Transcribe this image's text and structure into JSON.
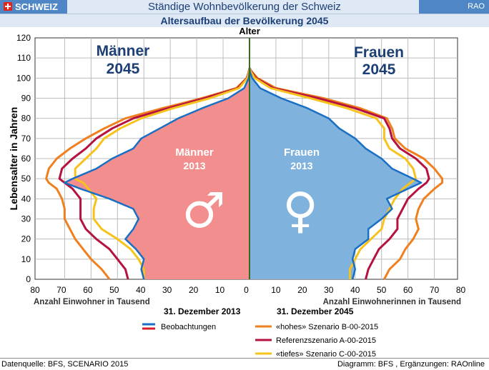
{
  "header": {
    "badge": "SCHWEIZ",
    "title": "Ständige Wohnbevölkerung der Schweiz",
    "right": "RAO"
  },
  "subtitle": "Altersaufbau der Bevölkerung 2045",
  "footer": {
    "left": "Datenquelle: BFS, SCENARIO 2015",
    "right": "Diagramm: BFS , Ergänzungen: RAOnline"
  },
  "colors": {
    "male_fill": "#f28e8e",
    "female_fill": "#7fb2dc",
    "observed": "#1a6fc4",
    "hohes": "#f07f1e",
    "referenz": "#b5123f",
    "tiefes": "#f7c21b",
    "title": "#1c3f75",
    "axis_center": "#3a6b1e"
  },
  "chart_data": {
    "type": "population-pyramid",
    "center_axis_title": "Alter",
    "ylabel": "Lebensalter in Jahren",
    "xlabel_left": "Anzahl Einwohner in Tausend",
    "xlabel_right": "Anzahl Einwohnerinnen in Tausend",
    "ylim": [
      0,
      120
    ],
    "xlim": [
      0,
      80
    ],
    "yticks": [
      "0",
      "10",
      "20",
      "30",
      "40",
      "50",
      "60",
      "70",
      "80",
      "90",
      "100",
      "110",
      "120"
    ],
    "xticks_left": [
      "80",
      "70",
      "60",
      "50",
      "40",
      "30",
      "20",
      "10",
      "0"
    ],
    "xticks_right": [
      "10",
      "20",
      "30",
      "40",
      "50",
      "60",
      "70",
      "80"
    ],
    "ages": [
      0,
      5,
      10,
      15,
      20,
      25,
      30,
      35,
      40,
      45,
      48,
      50,
      55,
      60,
      65,
      70,
      75,
      80,
      85,
      90,
      95,
      100,
      103,
      105
    ],
    "annotations": {
      "male": {
        "label": "Männer",
        "year": "2045"
      },
      "female": {
        "label": "Frauen",
        "year": "2045"
      },
      "male_2013": {
        "label": "Männer",
        "year": "2013"
      },
      "female_2013": {
        "label": "Frauen",
        "year": "2013"
      },
      "male_symbol": "♂",
      "female_symbol": "♀"
    },
    "legend": {
      "header_left": "31. Dezember 2013",
      "header_right": "31. Dezember 2045",
      "observed_label": "Beobachtungen",
      "items": [
        {
          "key": "hohes",
          "label": "«hohes» Szenario B-00-2015"
        },
        {
          "key": "referenz",
          "label": "Referenzszenario A-00-2015"
        },
        {
          "key": "tiefes",
          "label": "«tiefes» Szenario C-00-2015"
        }
      ]
    },
    "series": [
      {
        "key": "observed_male",
        "side": "left",
        "values": [
          40,
          41,
          40,
          43,
          47,
          44,
          42,
          44,
          53,
          64,
          70,
          67,
          58,
          52,
          44,
          41,
          34,
          27,
          18,
          8,
          2,
          0.3,
          0,
          0
        ]
      },
      {
        "key": "observed_female",
        "side": "right",
        "values": [
          39,
          40,
          39,
          40,
          45,
          45,
          50,
          54,
          52,
          60,
          65,
          62,
          54,
          50,
          44,
          40,
          34,
          30,
          22,
          12,
          4,
          1,
          0.2,
          0
        ]
      },
      {
        "key": "hohes_male",
        "side": "left",
        "values": [
          53,
          56,
          60,
          63,
          66,
          68,
          70,
          70,
          71,
          73,
          76,
          77,
          76,
          73,
          68,
          62,
          55,
          47,
          33,
          18,
          5,
          1,
          0.3,
          0
        ]
      },
      {
        "key": "hohes_female",
        "side": "right",
        "values": [
          51,
          53,
          57,
          59,
          62,
          64,
          63,
          64,
          66,
          70,
          73,
          73,
          70,
          66,
          59,
          55,
          54,
          52,
          42,
          28,
          10,
          3,
          1,
          0
        ]
      },
      {
        "key": "referenz_male",
        "side": "left",
        "values": [
          46,
          47,
          50,
          53,
          58,
          62,
          64,
          64,
          64,
          67,
          70,
          72,
          71,
          67,
          62,
          58,
          52,
          44,
          31,
          17,
          4.5,
          1,
          0.3,
          0
        ]
      },
      {
        "key": "referenz_female",
        "side": "right",
        "values": [
          44,
          45,
          47,
          49,
          53,
          56,
          56,
          58,
          60,
          64,
          67,
          68,
          67,
          63,
          57,
          54,
          53,
          51,
          40,
          26,
          9,
          2.5,
          0.8,
          0
        ]
      },
      {
        "key": "tiefes_male",
        "side": "left",
        "values": [
          40,
          40,
          42,
          45,
          50,
          56,
          59,
          59,
          58,
          61,
          63,
          66,
          66,
          62,
          58,
          55,
          49,
          41,
          29,
          15,
          4,
          0.8,
          0.2,
          0
        ]
      },
      {
        "key": "tiefes_female",
        "side": "right",
        "values": [
          38,
          38,
          40,
          42,
          46,
          50,
          51,
          53,
          55,
          58,
          61,
          63,
          62,
          59,
          53,
          51,
          51,
          48,
          37,
          23,
          8,
          2,
          0.6,
          0
        ]
      }
    ]
  }
}
